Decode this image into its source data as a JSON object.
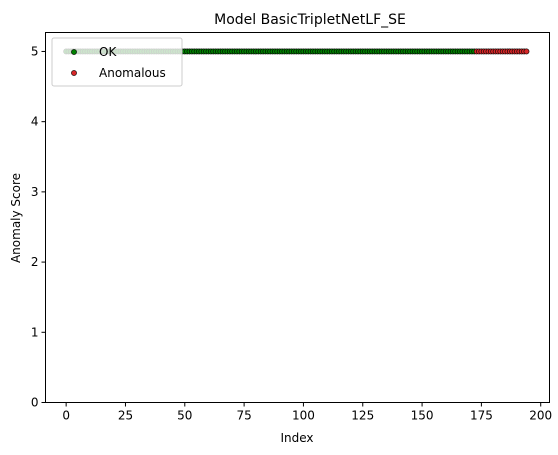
{
  "chart_data": {
    "type": "scatter",
    "title": "Model BasicTripletNetLF_SE",
    "xlabel": "Index",
    "ylabel": "Anomaly Score",
    "xlim": [
      -8.7,
      203.7
    ],
    "ylim": [
      0,
      5.27
    ],
    "xticks": [
      0,
      25,
      50,
      75,
      100,
      125,
      150,
      175,
      200
    ],
    "yticks": [
      0,
      1,
      2,
      3,
      4,
      5
    ],
    "grid": false,
    "legend_position": "upper-left",
    "series": [
      {
        "name": "OK",
        "color": "#008000",
        "x_start": 0,
        "x_end": 172,
        "value": 5
      },
      {
        "name": "Anomalous",
        "color": "#d62728",
        "x_start": 173,
        "x_end": 194,
        "value": 5
      }
    ]
  }
}
